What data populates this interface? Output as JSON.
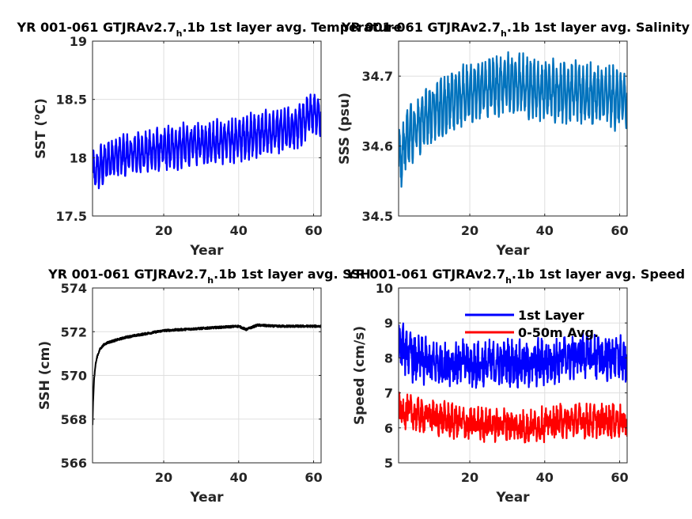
{
  "chart_data": [
    {
      "type": "line",
      "title_prefix": "YR 001-061 GTJRAv2.7",
      "title_sub": "h",
      "title_suffix": ".1b 1st layer avg. Temperature",
      "xlabel": "Year",
      "ylabel_prefix": "SST (",
      "ylabel_sup": "o",
      "ylabel_suffix": "C)",
      "xlim": [
        1,
        62
      ],
      "ylim": [
        17.5,
        19
      ],
      "xticks": [
        20,
        40,
        60
      ],
      "yticks": [
        17.5,
        18,
        18.5,
        19
      ],
      "ytick_labels": [
        "17.5",
        "18",
        "18.5",
        "19"
      ],
      "grid": true,
      "series": [
        {
          "color": "#0000ff",
          "style": "seasonal",
          "x": [
            1,
            3,
            6,
            10,
            15,
            20,
            25,
            30,
            35,
            40,
            45,
            50,
            55,
            58,
            60,
            62
          ],
          "y": [
            17.85,
            17.92,
            18.0,
            18.02,
            18.05,
            18.07,
            18.1,
            18.12,
            18.14,
            18.16,
            18.2,
            18.22,
            18.25,
            18.33,
            18.4,
            18.35
          ],
          "amplitude": 0.17
        }
      ]
    },
    {
      "type": "line",
      "title_prefix": "YR 001-061 GTJRAv2.7",
      "title_sub": "h",
      "title_suffix": ".1b 1st layer avg. Salinity",
      "xlabel": "Year",
      "ylabel": "SSS (psu)",
      "xlim": [
        1,
        62
      ],
      "ylim": [
        34.5,
        34.75
      ],
      "xticks": [
        20,
        40,
        60
      ],
      "yticks": [
        34.5,
        34.6,
        34.7
      ],
      "ytick_labels": [
        "34.5",
        "34.6",
        "34.7"
      ],
      "grid": true,
      "series": [
        {
          "color": "#0072bd",
          "style": "seasonal",
          "x": [
            1,
            2,
            3,
            5,
            8,
            12,
            16,
            20,
            25,
            30,
            35,
            40,
            45,
            50,
            55,
            60,
            62
          ],
          "y": [
            34.58,
            34.59,
            34.61,
            34.625,
            34.64,
            34.655,
            34.665,
            34.675,
            34.685,
            34.69,
            34.685,
            34.68,
            34.68,
            34.675,
            34.672,
            34.668,
            34.665
          ],
          "amplitude": 0.04
        }
      ]
    },
    {
      "type": "line",
      "title_prefix": "YR 001-061 GTJRAv2.7",
      "title_sub": "h",
      "title_suffix": ".1b 1st layer avg. SSH",
      "xlabel": "Year",
      "ylabel": "SSH (cm)",
      "xlim": [
        1,
        62
      ],
      "ylim": [
        566,
        574
      ],
      "xticks": [
        20,
        40,
        60
      ],
      "yticks": [
        566,
        568,
        570,
        572,
        574
      ],
      "ytick_labels": [
        "566",
        "568",
        "570",
        "572",
        "574"
      ],
      "grid": true,
      "series": [
        {
          "color": "#000000",
          "style": "smooth",
          "x": [
            1,
            1.15,
            1.4,
            1.8,
            2.3,
            3,
            4,
            5,
            7,
            10,
            15,
            20,
            25,
            30,
            35,
            40,
            42,
            45,
            50,
            55,
            60,
            62
          ],
          "y": [
            567.7,
            568.8,
            569.8,
            570.5,
            570.9,
            571.2,
            571.4,
            571.5,
            571.6,
            571.75,
            571.9,
            572.05,
            572.1,
            572.15,
            572.2,
            572.25,
            572.1,
            572.3,
            572.25,
            572.25,
            572.25,
            572.25
          ],
          "amplitude": 0.05
        }
      ]
    },
    {
      "type": "line",
      "title_prefix": "YR 001-061 GTJRAv2.7",
      "title_sub": "h",
      "title_suffix": ".1b 1st layer avg. Speed",
      "xlabel": "Year",
      "ylabel": "Speed (cm/s)",
      "xlim": [
        1,
        62
      ],
      "ylim": [
        5,
        10
      ],
      "xticks": [
        20,
        40,
        60
      ],
      "yticks": [
        5,
        6,
        7,
        8,
        9,
        10
      ],
      "ytick_labels": [
        "5",
        "6",
        "7",
        "8",
        "9",
        "10"
      ],
      "grid": true,
      "legend": "top-right",
      "series": [
        {
          "name": "1st Layer",
          "color": "#0000ff",
          "style": "noisy",
          "x": [
            1,
            5,
            10,
            15,
            20,
            25,
            30,
            35,
            40,
            45,
            50,
            55,
            60,
            62
          ],
          "y": [
            8.4,
            8.0,
            7.8,
            7.9,
            7.8,
            7.8,
            7.9,
            7.8,
            7.9,
            8.0,
            8.1,
            8.0,
            8.0,
            7.8
          ],
          "amplitude": 0.55
        },
        {
          "name": "0-50m Avg.",
          "color": "#ff0000",
          "style": "noisy",
          "x": [
            1,
            5,
            10,
            15,
            20,
            25,
            30,
            35,
            40,
            45,
            50,
            55,
            60,
            62
          ],
          "y": [
            6.5,
            6.4,
            6.3,
            6.2,
            6.1,
            6.1,
            6.1,
            6.0,
            6.1,
            6.2,
            6.2,
            6.2,
            6.2,
            6.1
          ],
          "amplitude": 0.4
        }
      ]
    }
  ]
}
